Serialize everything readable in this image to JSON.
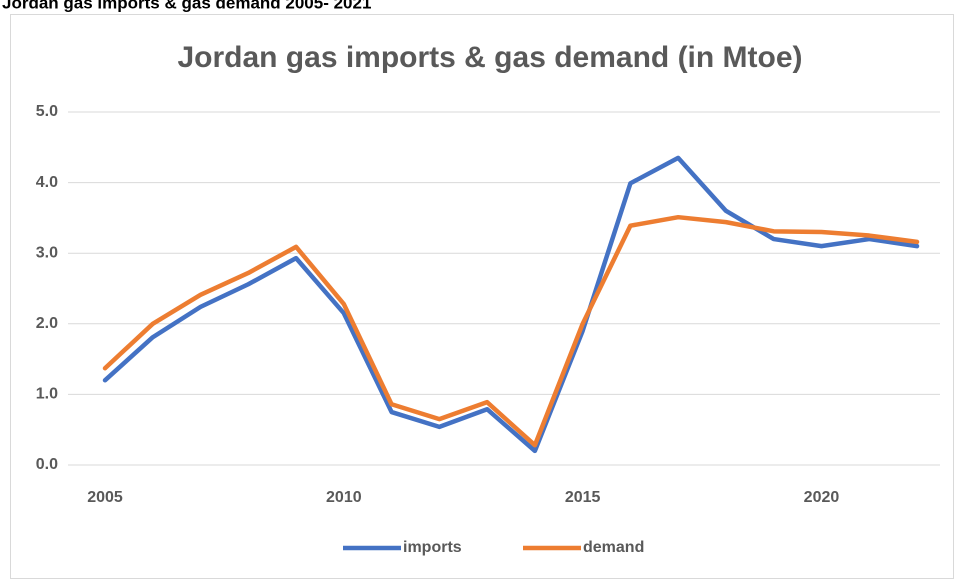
{
  "heading": "Jordan gas imports & gas demand 2005- 2021",
  "chart_data": {
    "type": "line",
    "title": "Jordan gas imports & gas demand (in Mtoe)",
    "x": [
      2005,
      2006,
      2007,
      2008,
      2009,
      2010,
      2011,
      2012,
      2013,
      2014,
      2015,
      2016,
      2017,
      2018,
      2019,
      2020,
      2021,
      2022
    ],
    "series": [
      {
        "name": "imports",
        "color": "#4472c4",
        "values": [
          1.2,
          1.81,
          2.24,
          2.56,
          2.93,
          2.15,
          0.75,
          0.54,
          0.79,
          0.2,
          1.9,
          3.99,
          4.35,
          3.6,
          3.2,
          3.1,
          3.2,
          3.1
        ]
      },
      {
        "name": "demand",
        "color": "#ed7d31",
        "values": [
          1.37,
          2.0,
          2.41,
          2.72,
          3.09,
          2.28,
          0.86,
          0.65,
          0.89,
          0.28,
          2.0,
          3.39,
          3.51,
          3.44,
          3.31,
          3.3,
          3.25,
          3.16
        ]
      }
    ],
    "xlim": [
      2005,
      2022
    ],
    "xticks": [
      2005,
      2010,
      2015,
      2020
    ],
    "ylim": [
      0,
      5
    ],
    "yticks": [
      {
        "value": 0,
        "label": "0.0"
      },
      {
        "value": 1,
        "label": "1.0"
      },
      {
        "value": 2,
        "label": "2.0"
      },
      {
        "value": 3,
        "label": "3.0"
      },
      {
        "value": 4,
        "label": "4.0"
      },
      {
        "value": 5,
        "label": "5.0"
      }
    ],
    "grid": true,
    "legend": "bottom"
  }
}
